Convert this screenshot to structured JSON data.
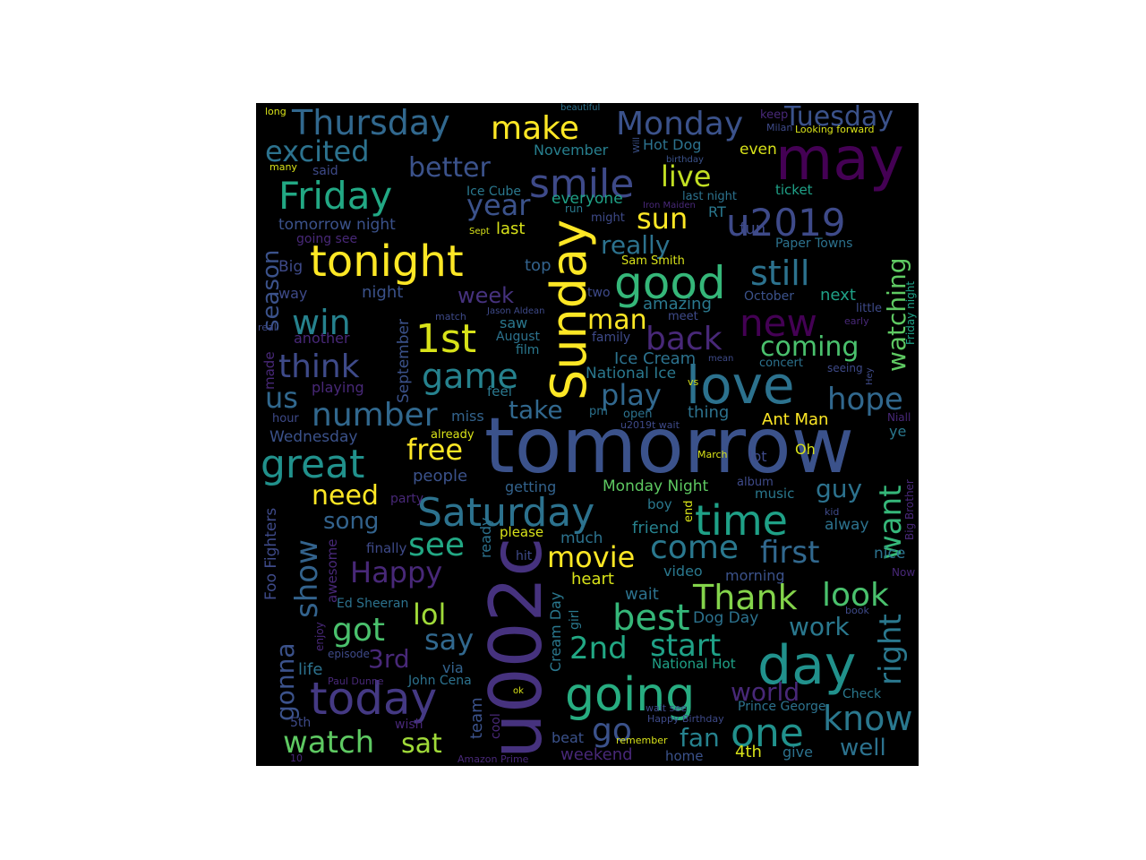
{
  "figure": {
    "type": "word-cloud",
    "background": "#000000",
    "palette": [
      "#fde725",
      "#a0da39",
      "#4ac16d",
      "#1fa187",
      "#277f8e",
      "#365c8d",
      "#46327e",
      "#440154"
    ]
  },
  "words": [
    {
      "text": "tomorrow",
      "color": "#3b528b"
    },
    {
      "text": "u002c",
      "color": "#46327e"
    },
    {
      "text": "may",
      "color": "#440154"
    },
    {
      "text": "Sunday",
      "color": "#fde725"
    },
    {
      "text": "love",
      "color": "#2c728e"
    },
    {
      "text": "day",
      "color": "#21918c"
    },
    {
      "text": "today",
      "color": "#443983"
    },
    {
      "text": "going",
      "color": "#27ad81"
    },
    {
      "text": "tonight",
      "color": "#fde725"
    },
    {
      "text": "Saturday",
      "color": "#2c728e"
    },
    {
      "text": "time",
      "color": "#1fa187"
    },
    {
      "text": "good",
      "color": "#35b779"
    },
    {
      "text": "Friday",
      "color": "#22a884"
    },
    {
      "text": "great",
      "color": "#21918c"
    },
    {
      "text": "u2019",
      "color": "#3e4a89"
    },
    {
      "text": "Thursday",
      "color": "#31688e"
    },
    {
      "text": "Monday",
      "color": "#3b528b"
    },
    {
      "text": "smile",
      "color": "#3e4a89"
    },
    {
      "text": "new",
      "color": "#440154"
    },
    {
      "text": "still",
      "color": "#2c728e"
    },
    {
      "text": "1st",
      "color": "#d8e219"
    },
    {
      "text": "win",
      "color": "#26828e"
    },
    {
      "text": "game",
      "color": "#26828e"
    },
    {
      "text": "back",
      "color": "#482878"
    },
    {
      "text": "think",
      "color": "#3e4a89"
    },
    {
      "text": "one",
      "color": "#21918c"
    },
    {
      "text": "know",
      "color": "#2a788e"
    },
    {
      "text": "best",
      "color": "#35b779"
    },
    {
      "text": "Thank",
      "color": "#84d44b"
    },
    {
      "text": "look",
      "color": "#4ac16d"
    },
    {
      "text": "excited",
      "color": "#2c728e"
    },
    {
      "text": "make",
      "color": "#fde725"
    },
    {
      "text": "Tuesday",
      "color": "#3b528b"
    },
    {
      "text": "hope",
      "color": "#31688e"
    },
    {
      "text": "number",
      "color": "#31688e"
    },
    {
      "text": "show",
      "color": "#33638d"
    },
    {
      "text": "see",
      "color": "#22a884"
    },
    {
      "text": "Happy",
      "color": "#482878"
    },
    {
      "text": "movie",
      "color": "#fde725"
    },
    {
      "text": "come",
      "color": "#2a788e"
    },
    {
      "text": "first",
      "color": "#31688e"
    },
    {
      "text": "want",
      "color": "#35b779"
    },
    {
      "text": "right",
      "color": "#2a788e"
    },
    {
      "text": "watching",
      "color": "#5ec962"
    },
    {
      "text": "year",
      "color": "#3b528b"
    },
    {
      "text": "better",
      "color": "#3b528b"
    },
    {
      "text": "live",
      "color": "#c2df23"
    },
    {
      "text": "sun",
      "color": "#fde725"
    },
    {
      "text": "really",
      "color": "#2c728e"
    },
    {
      "text": "watch",
      "color": "#5ec962"
    },
    {
      "text": "go",
      "color": "#3b528b"
    },
    {
      "text": "world",
      "color": "#482878"
    },
    {
      "text": "start",
      "color": "#1fa187"
    },
    {
      "text": "2nd",
      "color": "#22a884"
    },
    {
      "text": "lol",
      "color": "#a0da39"
    },
    {
      "text": "got",
      "color": "#4ac16d"
    },
    {
      "text": "say",
      "color": "#31688e"
    },
    {
      "text": "free",
      "color": "#fde725"
    },
    {
      "text": "need",
      "color": "#fde725"
    },
    {
      "text": "us",
      "color": "#31688e"
    },
    {
      "text": "play",
      "color": "#31688e"
    },
    {
      "text": "coming",
      "color": "#4ac16d"
    },
    {
      "text": "work",
      "color": "#2a788e"
    },
    {
      "text": "gonna",
      "color": "#3b528b"
    },
    {
      "text": "season",
      "color": "#3b528b"
    },
    {
      "text": "man",
      "color": "#fde725"
    },
    {
      "text": "guy",
      "color": "#2c728e"
    },
    {
      "text": "take",
      "color": "#31688e"
    },
    {
      "text": "song",
      "color": "#33638d"
    },
    {
      "text": "sat",
      "color": "#a0da39"
    },
    {
      "text": "fan",
      "color": "#26828e"
    },
    {
      "text": "well",
      "color": "#2c728e"
    },
    {
      "text": "3rd",
      "color": "#482878"
    },
    {
      "text": "week",
      "color": "#46327e"
    },
    {
      "text": "Ant Man",
      "color": "#fde725"
    },
    {
      "text": "Ice Cream",
      "color": "#2c728e"
    },
    {
      "text": "National Ice",
      "color": "#2a788e"
    },
    {
      "text": "Monday Night",
      "color": "#5ec962"
    },
    {
      "text": "Hot Dog",
      "color": "#2c728e"
    },
    {
      "text": "November",
      "color": "#277f8e"
    },
    {
      "text": "everyone",
      "color": "#1fa187"
    },
    {
      "text": "ticket",
      "color": "#1fa187"
    },
    {
      "text": "even",
      "color": "#d8e219"
    },
    {
      "text": "fun",
      "color": "#3e4a89"
    },
    {
      "text": "Paper Towns",
      "color": "#2c728e"
    },
    {
      "text": "October",
      "color": "#3b528b"
    },
    {
      "text": "next",
      "color": "#1fa187"
    },
    {
      "text": "amazing",
      "color": "#2a788e"
    },
    {
      "text": "tomorrow night",
      "color": "#3b528b"
    },
    {
      "text": "going see",
      "color": "#482878"
    },
    {
      "text": "Big",
      "color": "#3e4a89"
    },
    {
      "text": "way",
      "color": "#3e4a89"
    },
    {
      "text": "night",
      "color": "#3b528b"
    },
    {
      "text": "top",
      "color": "#33638d"
    },
    {
      "text": "two",
      "color": "#3e4a89"
    },
    {
      "text": "RT",
      "color": "#2a788e"
    },
    {
      "text": "last",
      "color": "#d8e219"
    },
    {
      "text": "last night",
      "color": "#2c728e"
    },
    {
      "text": "might",
      "color": "#3e4a89"
    },
    {
      "text": "Sam Smith",
      "color": "#d8e219"
    },
    {
      "text": "Ice Cube",
      "color": "#2a788e"
    },
    {
      "text": "Iron Maiden",
      "color": "#482878"
    },
    {
      "text": "birthday",
      "color": "#3b528b"
    },
    {
      "text": "Looking forward",
      "color": "#d8e219"
    },
    {
      "text": "keep",
      "color": "#482878"
    },
    {
      "text": "Milan",
      "color": "#3e4a89"
    },
    {
      "text": "said",
      "color": "#3e4a89"
    },
    {
      "text": "many",
      "color": "#d8e219"
    },
    {
      "text": "long",
      "color": "#d8e219"
    },
    {
      "text": "beautiful",
      "color": "#2c728e"
    },
    {
      "text": "Will",
      "color": "#3b528b"
    },
    {
      "text": "run",
      "color": "#2a788e"
    },
    {
      "text": "Sept",
      "color": "#d8e219"
    },
    {
      "text": "September",
      "color": "#3b528b"
    },
    {
      "text": "saw",
      "color": "#2a788e"
    },
    {
      "text": "August",
      "color": "#2c728e"
    },
    {
      "text": "film",
      "color": "#2a788e"
    },
    {
      "text": "family",
      "color": "#3e4a89"
    },
    {
      "text": "meet",
      "color": "#3e4a89"
    },
    {
      "text": "match",
      "color": "#3e4a89"
    },
    {
      "text": "Jason Aldean",
      "color": "#3e4a89"
    },
    {
      "text": "another",
      "color": "#482878"
    },
    {
      "text": "real",
      "color": "#3e4a89"
    },
    {
      "text": "made",
      "color": "#482878"
    },
    {
      "text": "playing",
      "color": "#482878"
    },
    {
      "text": "feel",
      "color": "#2a788e"
    },
    {
      "text": "miss",
      "color": "#33638d"
    },
    {
      "text": "pm",
      "color": "#2c728e"
    },
    {
      "text": "open",
      "color": "#2c728e"
    },
    {
      "text": "thing",
      "color": "#2c728e"
    },
    {
      "text": "vs",
      "color": "#d8e219"
    },
    {
      "text": "mean",
      "color": "#3e4a89"
    },
    {
      "text": "concert",
      "color": "#2c728e"
    },
    {
      "text": "seeing",
      "color": "#3e4a89"
    },
    {
      "text": "Hey",
      "color": "#3e4a89"
    },
    {
      "text": "little",
      "color": "#3e4a89"
    },
    {
      "text": "early",
      "color": "#482878"
    },
    {
      "text": "Friday night",
      "color": "#1fa187"
    },
    {
      "text": "hour",
      "color": "#3e4a89"
    },
    {
      "text": "Wednesday",
      "color": "#3b528b"
    },
    {
      "text": "already",
      "color": "#d8e219"
    },
    {
      "text": "u2019t wait",
      "color": "#3e4a89"
    },
    {
      "text": "Niall",
      "color": "#482878"
    },
    {
      "text": "ye",
      "color": "#2a788e"
    },
    {
      "text": "Oh",
      "color": "#d8e219"
    },
    {
      "text": "lot",
      "color": "#3e4a89"
    },
    {
      "text": "March",
      "color": "#d8e219"
    },
    {
      "text": "people",
      "color": "#3b528b"
    },
    {
      "text": "getting",
      "color": "#33638d"
    },
    {
      "text": "party",
      "color": "#482878"
    },
    {
      "text": "album",
      "color": "#3e4a89"
    },
    {
      "text": "music",
      "color": "#2a788e"
    },
    {
      "text": "kid",
      "color": "#3e4a89"
    },
    {
      "text": "alway",
      "color": "#2c728e"
    },
    {
      "text": "Big Brother",
      "color": "#482878"
    },
    {
      "text": "end",
      "color": "#d8e219"
    },
    {
      "text": "boy",
      "color": "#2a788e"
    },
    {
      "text": "friend",
      "color": "#26828e"
    },
    {
      "text": "Foo Fighters",
      "color": "#3e4a89"
    },
    {
      "text": "awesome",
      "color": "#482878"
    },
    {
      "text": "finally",
      "color": "#3e4a89"
    },
    {
      "text": "ready",
      "color": "#2c728e"
    },
    {
      "text": "please",
      "color": "#d8e219"
    },
    {
      "text": "hit",
      "color": "#3e4a89"
    },
    {
      "text": "much",
      "color": "#2c728e"
    },
    {
      "text": "video",
      "color": "#2a788e"
    },
    {
      "text": "morning",
      "color": "#3b528b"
    },
    {
      "text": "nice",
      "color": "#2c728e"
    },
    {
      "text": "Now",
      "color": "#482878"
    },
    {
      "text": "heart",
      "color": "#d8e219"
    },
    {
      "text": "Cream Day",
      "color": "#2a788e"
    },
    {
      "text": "girl",
      "color": "#2a788e"
    },
    {
      "text": "Ed Sheeran",
      "color": "#2c728e"
    },
    {
      "text": "wait",
      "color": "#2c728e"
    },
    {
      "text": "Dog Day",
      "color": "#2c728e"
    },
    {
      "text": "book",
      "color": "#3e4a89"
    },
    {
      "text": "enjoy",
      "color": "#482878"
    },
    {
      "text": "episode",
      "color": "#3e4a89"
    },
    {
      "text": "life",
      "color": "#2c728e"
    },
    {
      "text": "Paul Dunne",
      "color": "#482878"
    },
    {
      "text": "John Cena",
      "color": "#2c728e"
    },
    {
      "text": "via",
      "color": "#33638d"
    },
    {
      "text": "National Hot",
      "color": "#1fa187"
    },
    {
      "text": "ok",
      "color": "#d8e219"
    },
    {
      "text": "wait see",
      "color": "#3e4a89"
    },
    {
      "text": "Prince George",
      "color": "#2c728e"
    },
    {
      "text": "Happy Birthday",
      "color": "#3e4a89"
    },
    {
      "text": "Check",
      "color": "#2a788e"
    },
    {
      "text": "team",
      "color": "#3b528b"
    },
    {
      "text": "cool",
      "color": "#482878"
    },
    {
      "text": "wish",
      "color": "#482878"
    },
    {
      "text": "5th",
      "color": "#3e4a89"
    },
    {
      "text": "10",
      "color": "#482878"
    },
    {
      "text": "Amazon Prime",
      "color": "#482878"
    },
    {
      "text": "beat",
      "color": "#3b528b"
    },
    {
      "text": "remember",
      "color": "#d8e219"
    },
    {
      "text": "weekend",
      "color": "#482878"
    },
    {
      "text": "home",
      "color": "#3b528b"
    },
    {
      "text": "4th",
      "color": "#d8e219"
    },
    {
      "text": "give",
      "color": "#2c728e"
    }
  ]
}
